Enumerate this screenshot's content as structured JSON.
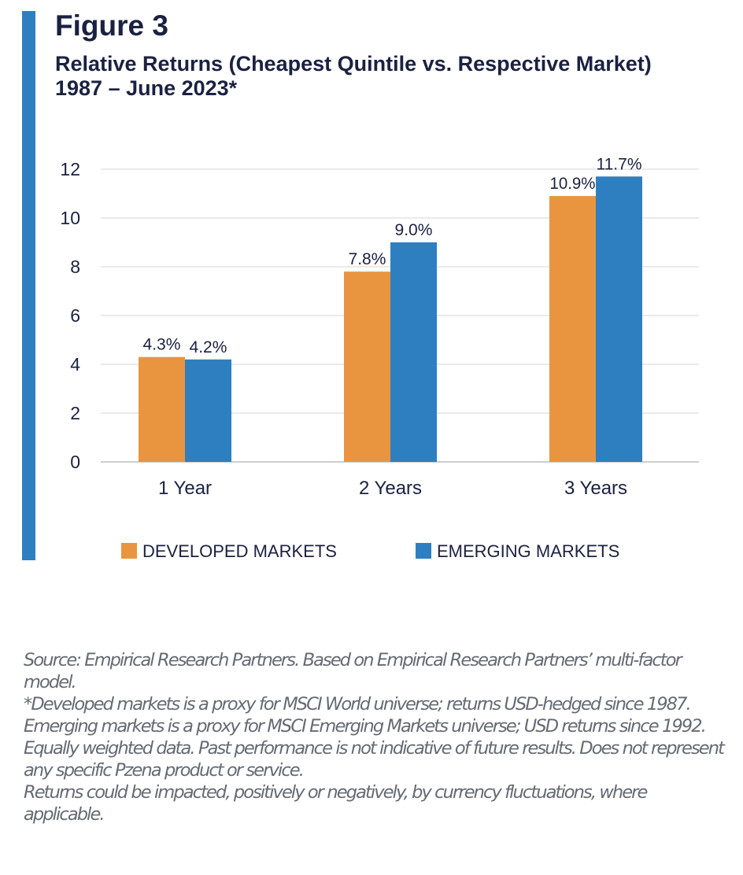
{
  "figure": {
    "label": "Figure 3",
    "title": "Relative Returns (Cheapest Quintile vs. Respective Market) 1987 – June 2023*"
  },
  "chart_data": {
    "type": "bar",
    "categories": [
      "1 Year",
      "2 Years",
      "3 Years"
    ],
    "series": [
      {
        "name": "DEVELOPED MARKETS",
        "values": [
          4.3,
          7.8,
          10.9
        ],
        "labels": [
          "4.3%",
          "7.8%",
          "10.9%"
        ],
        "color": "#e9953f"
      },
      {
        "name": "EMERGING MARKETS",
        "values": [
          4.2,
          9.0,
          11.7
        ],
        "labels": [
          "4.2%",
          "9.0%",
          "11.7%"
        ],
        "color": "#2e7fc0"
      }
    ],
    "yticks": [
      0,
      2,
      4,
      6,
      8,
      10,
      12
    ],
    "ylim": [
      0,
      12
    ],
    "grid": true,
    "legend": "bottom"
  },
  "notes": [
    "Source: Empirical Research Partners. Based on Empirical Research Partners’ multi-factor model.",
    "*Developed markets is a proxy for MSCI World universe; returns USD-hedged since 1987. Emerging markets is a proxy for MSCI Emerging Markets universe; USD returns since 1992. Equally weighted data. Past performance is not indicative of future results. Does not represent any specific Pzena product or service.",
    "Returns could be impacted, positively or negatively, by currency fluctuations, where applicable."
  ],
  "colors": {
    "accent": "#2e7fc0",
    "title": "#1b2140",
    "note": "#666a73"
  }
}
